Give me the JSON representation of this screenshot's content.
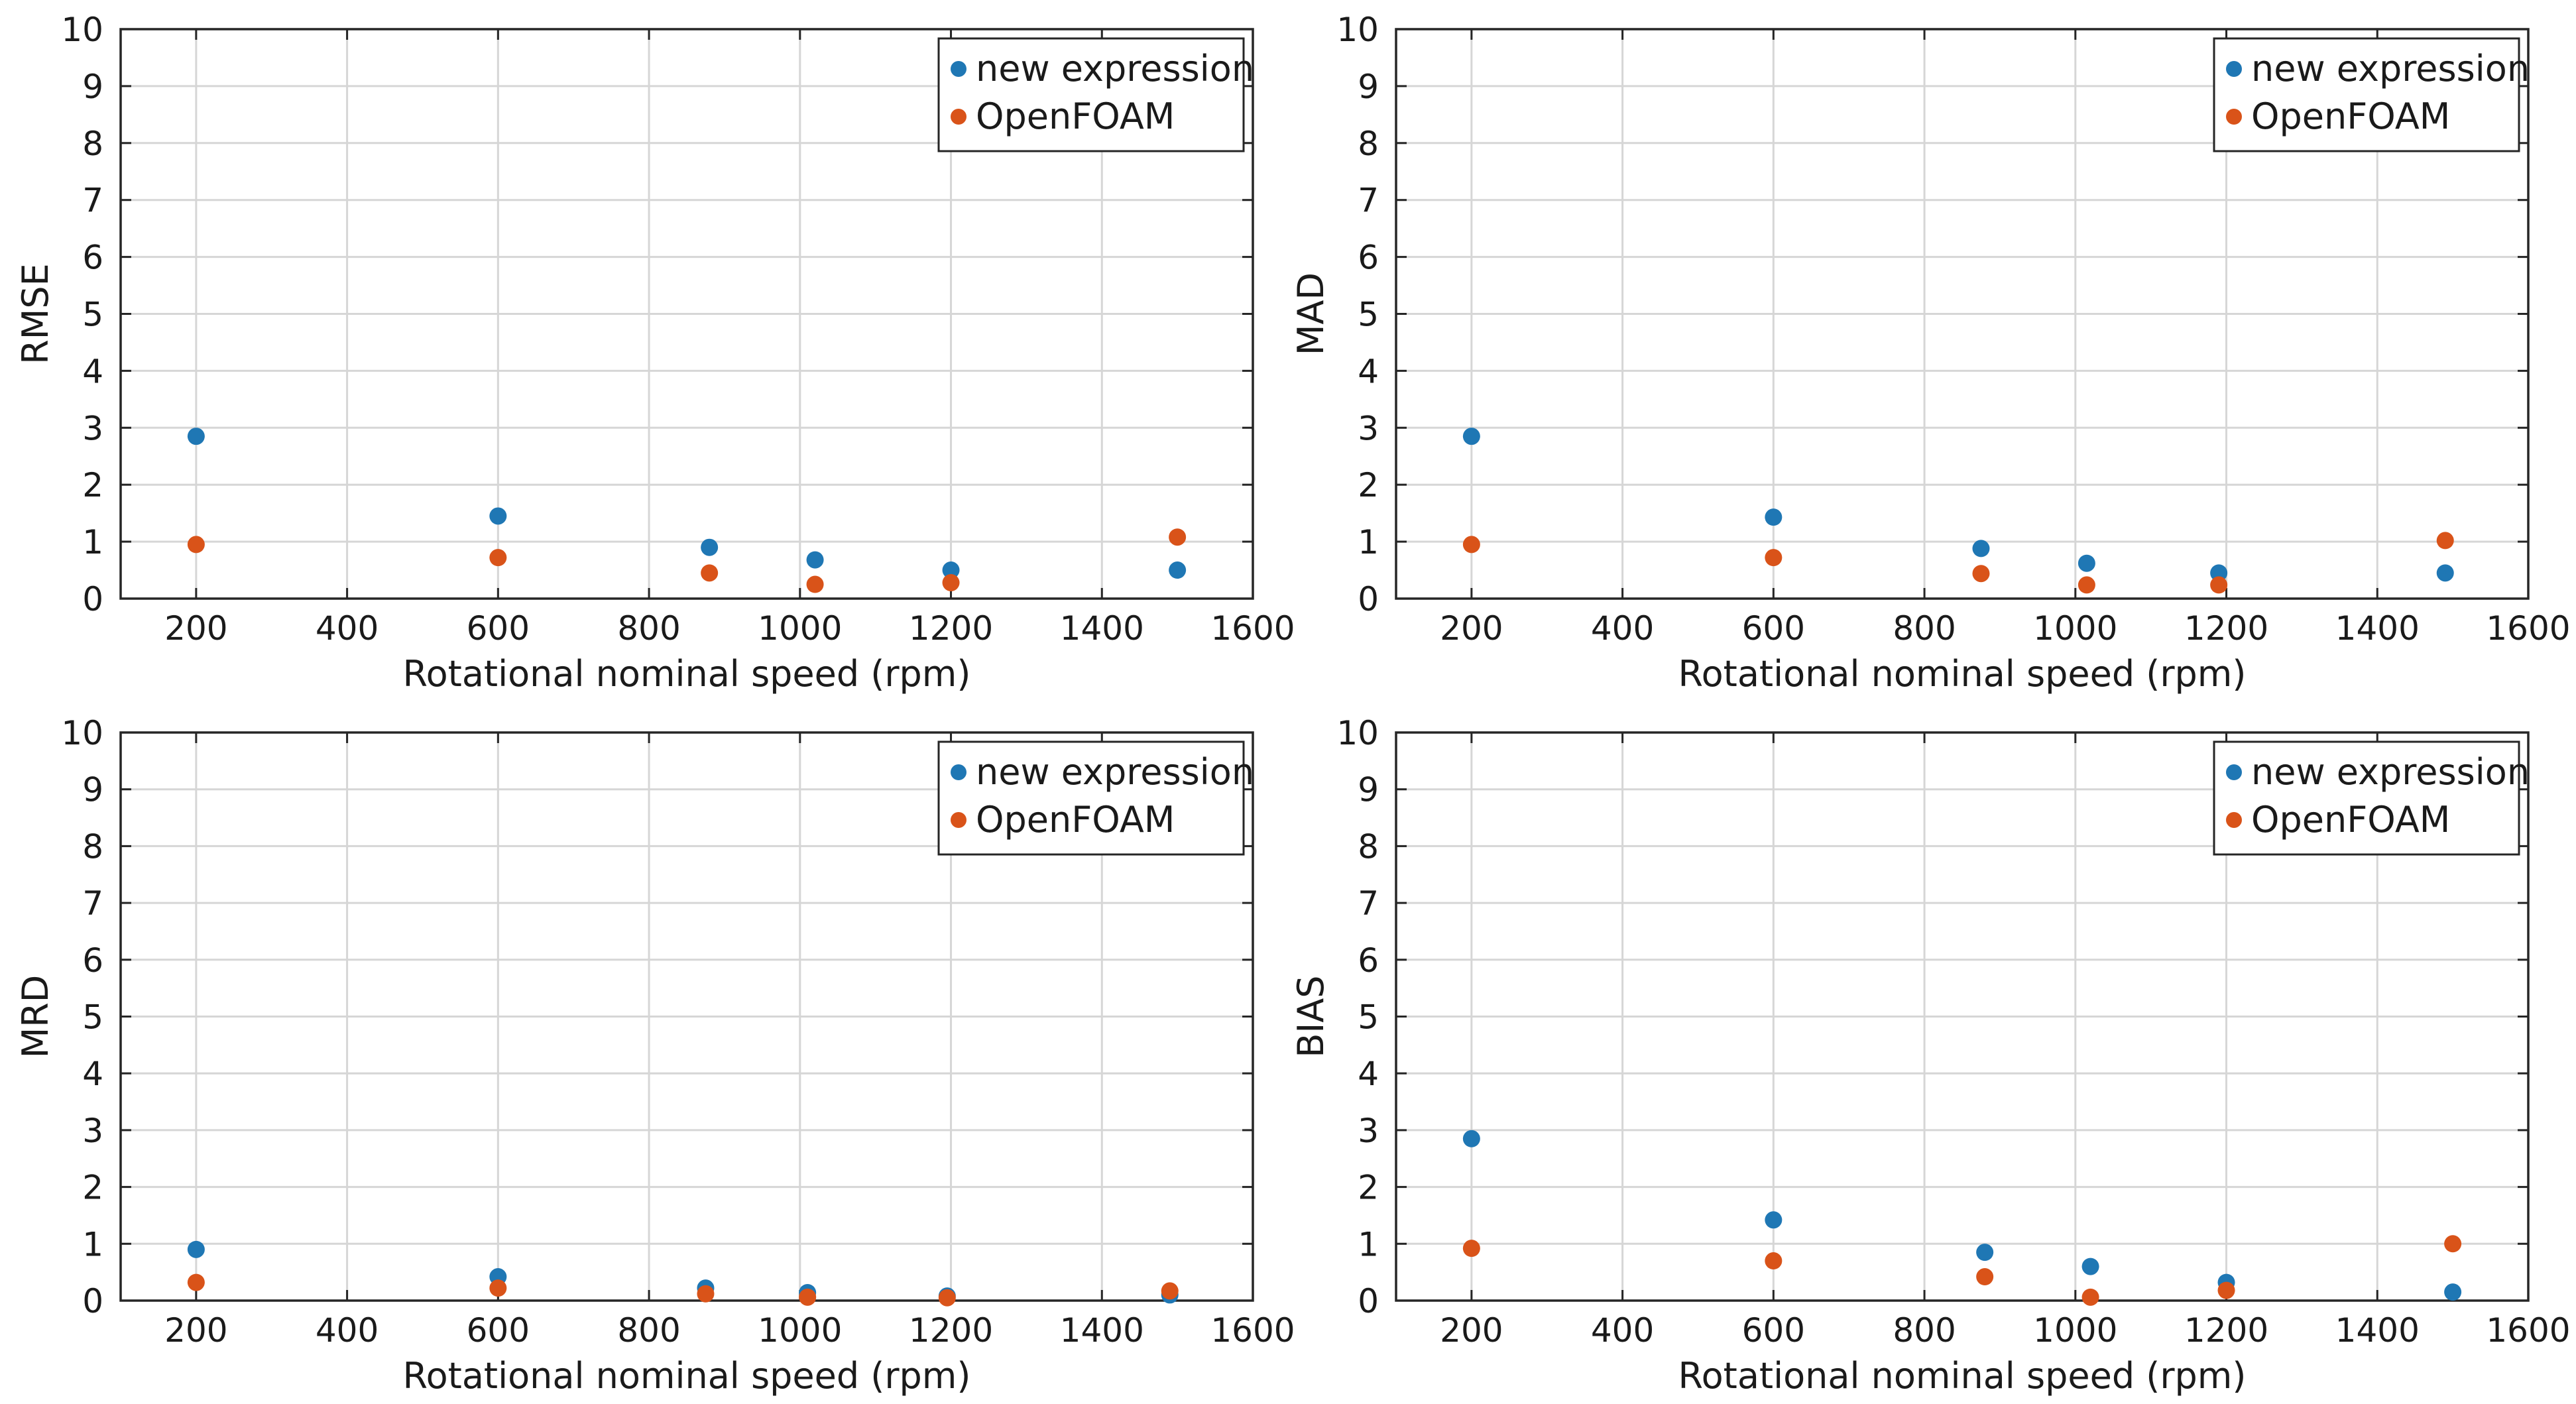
{
  "chart_data": [
    {
      "type": "scatter",
      "title": "",
      "xlabel": "Rotational nominal speed (rpm)",
      "ylabel": "RMSE",
      "xlim": [
        100,
        1600
      ],
      "ylim": [
        0,
        10
      ],
      "xticks": [
        "200",
        "400",
        "600",
        "800",
        "1000",
        "1200",
        "1400",
        "1600"
      ],
      "yticks": [
        "0",
        "1",
        "2",
        "3",
        "4",
        "5",
        "6",
        "7",
        "8",
        "9",
        "10"
      ],
      "grid": true,
      "legend": "top-right",
      "series": [
        {
          "name": "new expression",
          "color": "#1f77b4",
          "points": [
            [
              200,
              2.85
            ],
            [
              600,
              1.45
            ],
            [
              880,
              0.9
            ],
            [
              1020,
              0.68
            ],
            [
              1200,
              0.5
            ],
            [
              1500,
              0.5
            ]
          ]
        },
        {
          "name": "OpenFOAM",
          "color": "#d95319",
          "points": [
            [
              200,
              0.95
            ],
            [
              600,
              0.72
            ],
            [
              880,
              0.45
            ],
            [
              1020,
              0.25
            ],
            [
              1200,
              0.28
            ],
            [
              1500,
              1.08
            ]
          ]
        }
      ]
    },
    {
      "type": "scatter",
      "title": "",
      "xlabel": "Rotational nominal speed (rpm)",
      "ylabel": "MAD",
      "xlim": [
        100,
        1600
      ],
      "ylim": [
        0,
        10
      ],
      "xticks": [
        "200",
        "400",
        "600",
        "800",
        "1000",
        "1200",
        "1400",
        "1600"
      ],
      "yticks": [
        "0",
        "1",
        "2",
        "3",
        "4",
        "5",
        "6",
        "7",
        "8",
        "9",
        "10"
      ],
      "grid": true,
      "legend": "top-right",
      "series": [
        {
          "name": "new expression",
          "color": "#1f77b4",
          "points": [
            [
              200,
              2.85
            ],
            [
              600,
              1.43
            ],
            [
              875,
              0.88
            ],
            [
              1015,
              0.62
            ],
            [
              1190,
              0.45
            ],
            [
              1490,
              0.45
            ]
          ]
        },
        {
          "name": "OpenFOAM",
          "color": "#d95319",
          "points": [
            [
              200,
              0.95
            ],
            [
              600,
              0.72
            ],
            [
              875,
              0.44
            ],
            [
              1015,
              0.24
            ],
            [
              1190,
              0.24
            ],
            [
              1490,
              1.02
            ]
          ]
        }
      ]
    },
    {
      "type": "scatter",
      "title": "",
      "xlabel": "Rotational nominal speed (rpm)",
      "ylabel": "MRD",
      "xlim": [
        100,
        1600
      ],
      "ylim": [
        0,
        10
      ],
      "xticks": [
        "200",
        "400",
        "600",
        "800",
        "1000",
        "1200",
        "1400",
        "1600"
      ],
      "yticks": [
        "0",
        "1",
        "2",
        "3",
        "4",
        "5",
        "6",
        "7",
        "8",
        "9",
        "10"
      ],
      "grid": true,
      "legend": "top-right",
      "series": [
        {
          "name": "new expression",
          "color": "#1f77b4",
          "points": [
            [
              200,
              0.9
            ],
            [
              600,
              0.42
            ],
            [
              875,
              0.22
            ],
            [
              1010,
              0.14
            ],
            [
              1195,
              0.08
            ],
            [
              1490,
              0.1
            ]
          ]
        },
        {
          "name": "OpenFOAM",
          "color": "#d95319",
          "points": [
            [
              200,
              0.32
            ],
            [
              600,
              0.22
            ],
            [
              875,
              0.12
            ],
            [
              1010,
              0.06
            ],
            [
              1195,
              0.05
            ],
            [
              1490,
              0.17
            ]
          ]
        }
      ]
    },
    {
      "type": "scatter",
      "title": "",
      "xlabel": "Rotational nominal speed (rpm)",
      "ylabel": "BIAS",
      "xlim": [
        100,
        1600
      ],
      "ylim": [
        0,
        10
      ],
      "xticks": [
        "200",
        "400",
        "600",
        "800",
        "1000",
        "1200",
        "1400",
        "1600"
      ],
      "yticks": [
        "0",
        "1",
        "2",
        "3",
        "4",
        "5",
        "6",
        "7",
        "8",
        "9",
        "10"
      ],
      "grid": true,
      "legend": "top-right",
      "series": [
        {
          "name": "new expression",
          "color": "#1f77b4",
          "points": [
            [
              200,
              2.85
            ],
            [
              600,
              1.42
            ],
            [
              880,
              0.85
            ],
            [
              1020,
              0.6
            ],
            [
              1200,
              0.32
            ],
            [
              1500,
              0.15
            ]
          ]
        },
        {
          "name": "OpenFOAM",
          "color": "#d95319",
          "points": [
            [
              200,
              0.92
            ],
            [
              600,
              0.7
            ],
            [
              880,
              0.42
            ],
            [
              1020,
              0.06
            ],
            [
              1200,
              0.18
            ],
            [
              1500,
              1.0
            ]
          ]
        }
      ]
    }
  ]
}
